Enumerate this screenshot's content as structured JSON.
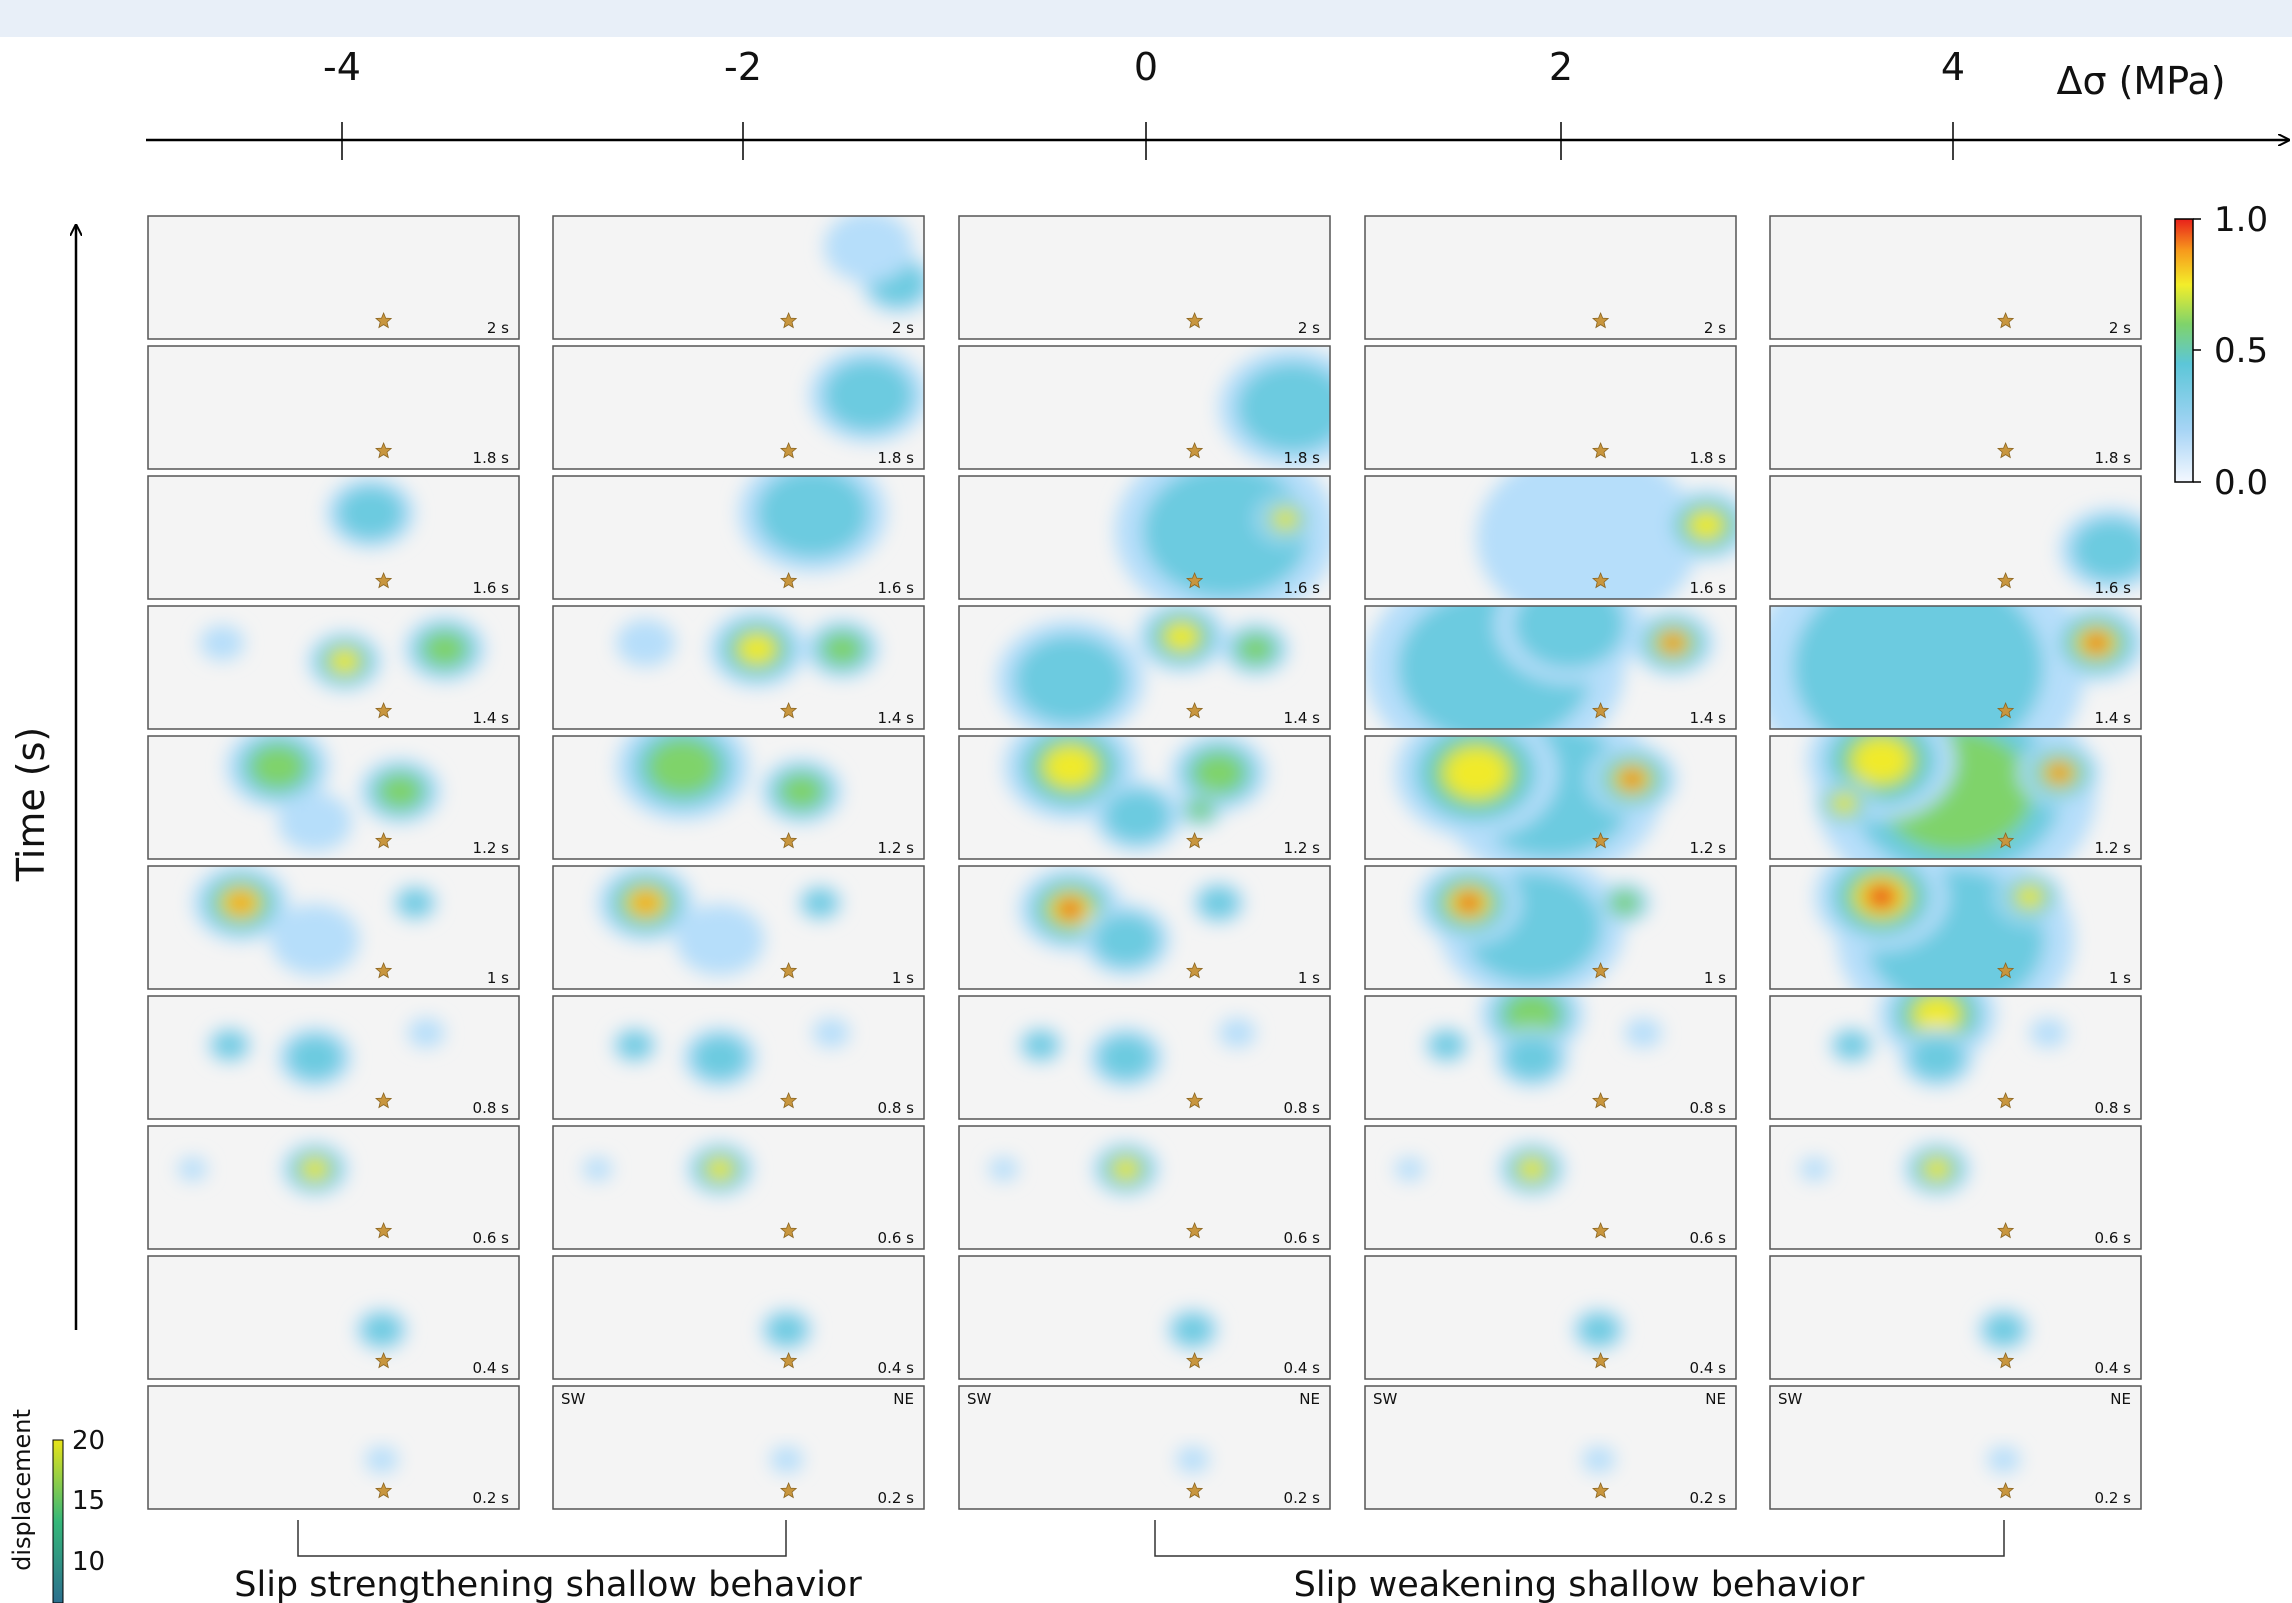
{
  "top_axis": {
    "label": "Δσ (MPa)",
    "ticks": [
      "-4",
      "-2",
      "0",
      "2",
      "4"
    ]
  },
  "time_axis": {
    "label": "Time (s)"
  },
  "times": [
    "2 s",
    "1.8 s",
    "1.6 s",
    "1.4 s",
    "1.2 s",
    "1 s",
    "0.8 s",
    "0.6 s",
    "0.4 s",
    "0.2 s"
  ],
  "orientation": {
    "left": "SW",
    "right": "NE"
  },
  "slip_colorbar": {
    "ticks": [
      "1.0",
      "0.5",
      "0.0"
    ]
  },
  "displacement_colorbar": {
    "label": "displacement",
    "ticks": [
      "20",
      "15",
      "10"
    ]
  },
  "groups": [
    {
      "label": "Slip strengthening shallow behavior"
    },
    {
      "label": "Slip weakening shallow behavior"
    }
  ]
}
